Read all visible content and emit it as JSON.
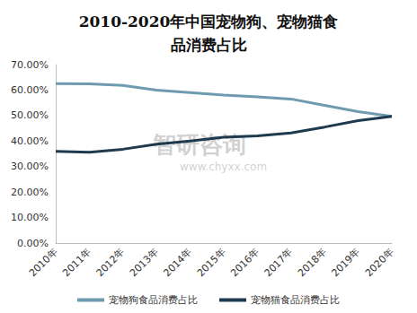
{
  "chart_data": {
    "type": "line",
    "title": "2010-2020年中国宠物狗、宠物猫食品消费占比",
    "annotations": [
      "智研咨询",
      "www.chyxx.com"
    ],
    "categories": [
      "2010年",
      "2011年",
      "2012年",
      "2013年",
      "2014年",
      "2015年",
      "2016年",
      "2017年",
      "2018年",
      "2019年",
      "2020年"
    ],
    "series": [
      {
        "name": "宠物狗食品消费占比",
        "color": "#6f9bb0",
        "values": [
          62.5,
          62.4,
          61.8,
          60.0,
          59.0,
          58.0,
          57.3,
          56.5,
          54.0,
          51.5,
          49.7
        ]
      },
      {
        "name": "宠物猫食品消费占比",
        "color": "#1d3a4f",
        "values": [
          36.0,
          35.6,
          36.8,
          38.8,
          40.0,
          41.5,
          42.0,
          43.2,
          45.5,
          48.0,
          49.7
        ]
      }
    ],
    "ylim": [
      0,
      70
    ],
    "yticks": [
      {
        "value": 0,
        "label": "0.00%"
      },
      {
        "value": 10,
        "label": "10.00%"
      },
      {
        "value": 20,
        "label": "20.00%"
      },
      {
        "value": 30,
        "label": "30.00%"
      },
      {
        "value": 40,
        "label": "40.00%"
      },
      {
        "value": 50,
        "label": "50.00%"
      },
      {
        "value": 60,
        "label": "60.00%"
      },
      {
        "value": 70,
        "label": "70.00%"
      }
    ],
    "grid": false,
    "legend": "bottom"
  }
}
